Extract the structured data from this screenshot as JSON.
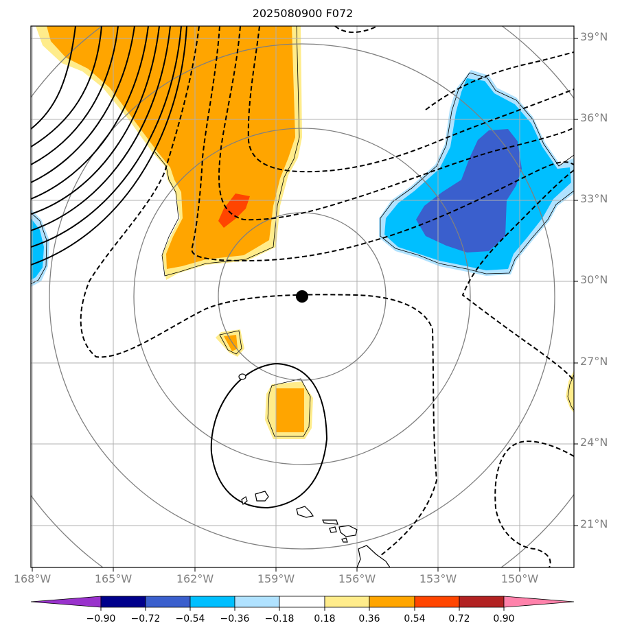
{
  "title": "2025080900 F072",
  "map": {
    "projection": "polar-stereographic-like",
    "lat_labels": [
      "39°N",
      "36°N",
      "33°N",
      "30°N",
      "27°N",
      "24°N",
      "21°N"
    ],
    "lon_labels": [
      "168°W",
      "165°W",
      "162°W",
      "159°W",
      "156°W",
      "153°W",
      "150°W"
    ],
    "center_marker": {
      "lat": 29.5,
      "lon": -158.0,
      "color": "#000000"
    },
    "range_ring_color": "#808080",
    "gridline_color": "#b0b0b0",
    "contour_color": "#000000",
    "land_outline": "Hawaiian Islands"
  },
  "colorbar": {
    "tick_labels": [
      "−0.90",
      "−0.72",
      "−0.54",
      "−0.36",
      "−0.18",
      "0.18",
      "0.36",
      "0.54",
      "0.72",
      "0.90"
    ],
    "colors": [
      "#9932cc",
      "#00008b",
      "#3a5fcd",
      "#00bfff",
      "#b0e2ff",
      "#ffffff",
      "#ffec8b",
      "#ffa500",
      "#ff4500",
      "#b22222",
      "#ff82ab"
    ],
    "extend": "both"
  }
}
